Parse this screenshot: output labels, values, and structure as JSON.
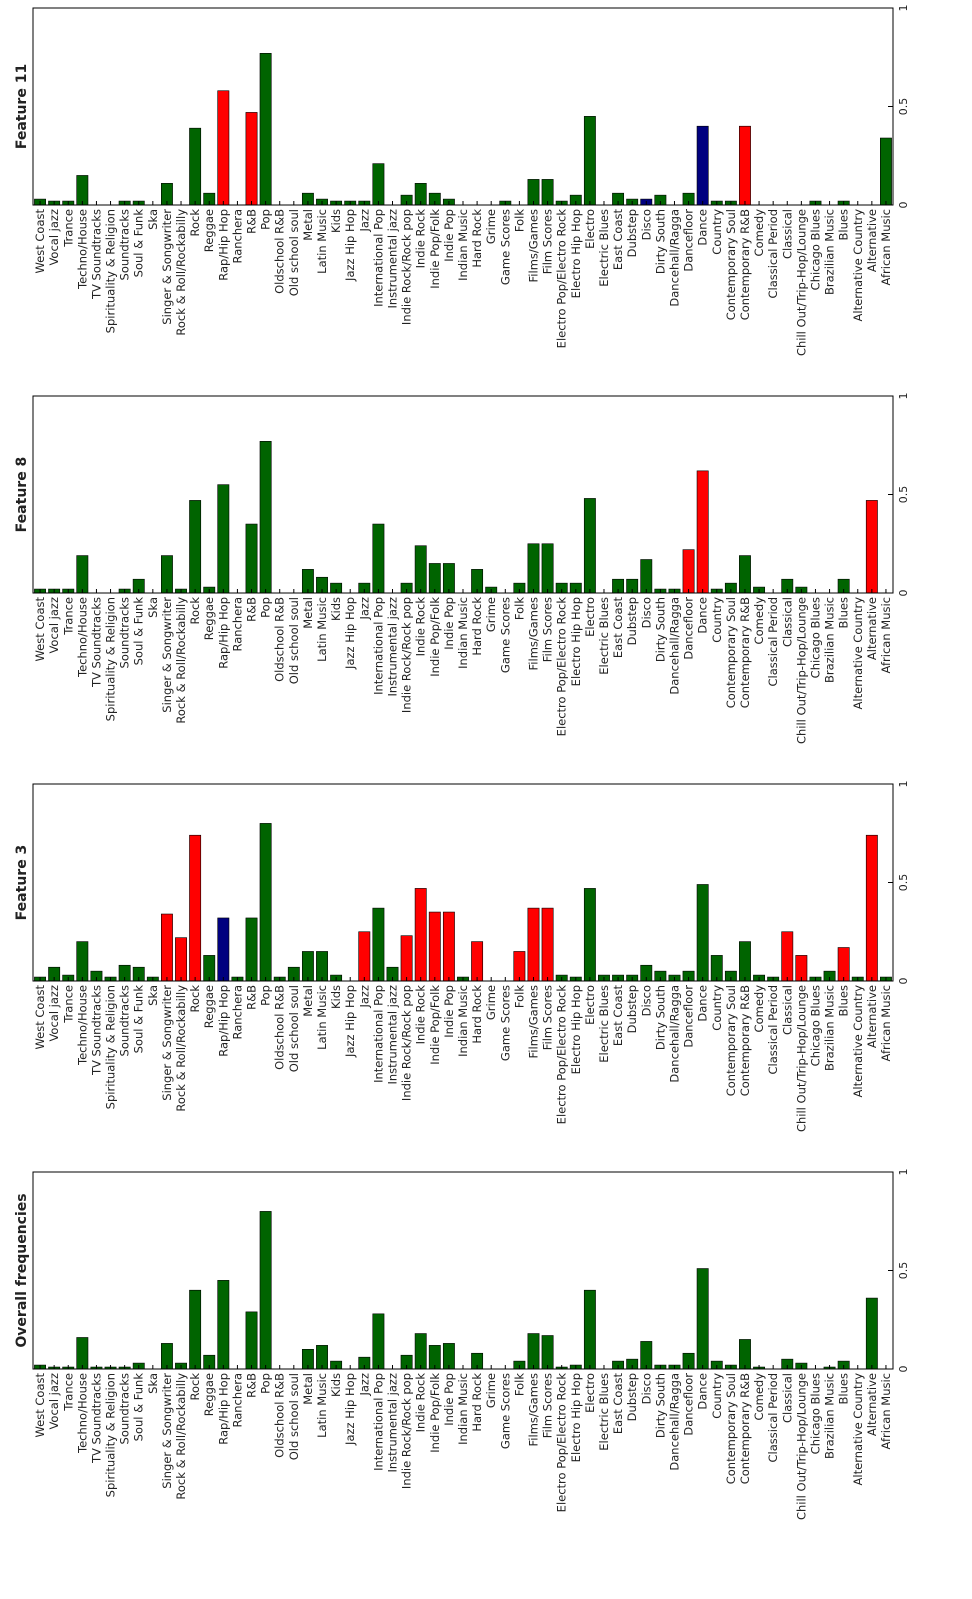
{
  "colors": {
    "green": "#006400",
    "red": "#ff0000",
    "blue": "#00007f"
  },
  "chart_data": [
    {
      "type": "bar",
      "title": "Feature 11",
      "ylim": [
        0,
        1
      ],
      "yticks": [
        0,
        0.5,
        1
      ],
      "ytick_labels": [
        "0",
        "0.5",
        "1"
      ],
      "categories": [
        "West Coast",
        "Vocal jazz",
        "Trance",
        "Techno/House",
        "TV Soundtracks",
        "Spirituality & Religion",
        "Soundtracks",
        "Soul & Funk",
        "Ska",
        "Singer & Songwriter",
        "Rock & Roll/Rockabilly",
        "Rock",
        "Reggae",
        "Rap/Hip Hop",
        "Ranchera",
        "R&B",
        "Pop",
        "Oldschool R&B",
        "Old school soul",
        "Metal",
        "Latin Music",
        "Kids",
        "Jazz Hip Hop",
        "Jazz",
        "International Pop",
        "Instrumental jazz",
        "Indie Rock/Rock pop",
        "Indie Rock",
        "Indie Pop/Folk",
        "Indie Pop",
        "Indian Music",
        "Hard Rock",
        "Grime",
        "Game Scores",
        "Folk",
        "Films/Games",
        "Film Scores",
        "Electro Pop/Electro Rock",
        "Electro Hip Hop",
        "Electro",
        "Electric Blues",
        "East Coast",
        "Dubstep",
        "Disco",
        "Dirty South",
        "Dancehall/Ragga",
        "Dancefloor",
        "Dance",
        "Country",
        "Contemporary Soul",
        "Contemporary R&B",
        "Comedy",
        "Classical Period",
        "Classical",
        "Chill Out/Trip-Hop/Lounge",
        "Chicago Blues",
        "Brazilian Music",
        "Blues",
        "Alternative Country",
        "Alternative",
        "African Music"
      ],
      "values": [
        0.03,
        0.02,
        0.02,
        0.15,
        0,
        0,
        0.02,
        0.02,
        0,
        0.11,
        0,
        0.39,
        0.06,
        0.58,
        0,
        0.47,
        0.77,
        0,
        0,
        0.06,
        0.03,
        0.02,
        0.02,
        0.02,
        0.21,
        0,
        0.05,
        0.11,
        0.06,
        0.03,
        0,
        0,
        0,
        0.02,
        0,
        0.13,
        0.13,
        0.02,
        0.05,
        0.45,
        0,
        0.06,
        0.03,
        0.03,
        0.05,
        0,
        0.06,
        0.4,
        0.02,
        0.02,
        0.4,
        0,
        0,
        0,
        0,
        0.02,
        0,
        0.02,
        0,
        0,
        0.34
      ],
      "bar_colors": [
        "green",
        "green",
        "green",
        "green",
        "green",
        "green",
        "green",
        "green",
        "green",
        "green",
        "green",
        "green",
        "green",
        "red",
        "green",
        "red",
        "green",
        "green",
        "green",
        "green",
        "green",
        "green",
        "green",
        "green",
        "green",
        "green",
        "green",
        "green",
        "green",
        "green",
        "green",
        "green",
        "green",
        "green",
        "green",
        "green",
        "green",
        "green",
        "green",
        "green",
        "green",
        "green",
        "green",
        "blue",
        "green",
        "green",
        "green",
        "blue",
        "green",
        "green",
        "red",
        "green",
        "green",
        "green",
        "green",
        "green",
        "green",
        "green",
        "green",
        "green",
        "green"
      ]
    },
    {
      "type": "bar",
      "title": "Feature 8",
      "ylim": [
        0,
        1
      ],
      "yticks": [
        0,
        0.5,
        1
      ],
      "ytick_labels": [
        "0",
        "0.5",
        "1"
      ],
      "categories": [
        "West Coast",
        "Vocal jazz",
        "Trance",
        "Techno/House",
        "TV Soundtracks",
        "Spirituality & Religion",
        "Soundtracks",
        "Soul & Funk",
        "Ska",
        "Singer & Songwriter",
        "Rock & Roll/Rockabilly",
        "Rock",
        "Reggae",
        "Rap/Hip Hop",
        "Ranchera",
        "R&B",
        "Pop",
        "Oldschool R&B",
        "Old school soul",
        "Metal",
        "Latin Music",
        "Kids",
        "Jazz Hip Hop",
        "Jazz",
        "International Pop",
        "Instrumental jazz",
        "Indie Rock/Rock pop",
        "Indie Rock",
        "Indie Pop/Folk",
        "Indie Pop",
        "Indian Music",
        "Hard Rock",
        "Grime",
        "Game Scores",
        "Folk",
        "Films/Games",
        "Film Scores",
        "Electro Pop/Electro Rock",
        "Electro Hip Hop",
        "Electro",
        "Electric Blues",
        "East Coast",
        "Dubstep",
        "Disco",
        "Dirty South",
        "Dancehall/Ragga",
        "Dancefloor",
        "Dance",
        "Country",
        "Contemporary Soul",
        "Contemporary R&B",
        "Comedy",
        "Classical Period",
        "Classical",
        "Chill Out/Trip-Hop/Lounge",
        "Chicago Blues",
        "Brazilian Music",
        "Blues",
        "Alternative Country",
        "Alternative",
        "African Music"
      ],
      "values": [
        0.02,
        0.02,
        0.02,
        0.19,
        0,
        0,
        0.02,
        0.07,
        0,
        0.19,
        0.02,
        0.47,
        0.03,
        0.55,
        0,
        0.35,
        0.77,
        0,
        0,
        0.12,
        0.08,
        0.05,
        0,
        0.05,
        0.35,
        0,
        0.05,
        0.24,
        0.15,
        0.15,
        0,
        0.12,
        0.03,
        0,
        0.05,
        0.25,
        0.25,
        0.05,
        0.05,
        0.48,
        0,
        0.07,
        0.07,
        0.17,
        0.02,
        0.02,
        0.22,
        0.62,
        0.02,
        0.05,
        0.19,
        0.03,
        0,
        0.07,
        0.03,
        0,
        0,
        0.07,
        0,
        0.47,
        0
      ],
      "bar_colors": [
        "green",
        "green",
        "green",
        "green",
        "green",
        "green",
        "green",
        "green",
        "green",
        "green",
        "green",
        "green",
        "green",
        "green",
        "green",
        "green",
        "green",
        "green",
        "green",
        "green",
        "green",
        "green",
        "green",
        "green",
        "green",
        "green",
        "green",
        "green",
        "green",
        "green",
        "green",
        "green",
        "green",
        "green",
        "green",
        "green",
        "green",
        "green",
        "green",
        "green",
        "green",
        "green",
        "green",
        "green",
        "green",
        "green",
        "red",
        "red",
        "green",
        "green",
        "green",
        "green",
        "green",
        "green",
        "green",
        "green",
        "green",
        "green",
        "green",
        "red",
        "green"
      ]
    },
    {
      "type": "bar",
      "title": "Feature 3",
      "ylim": [
        0,
        1
      ],
      "yticks": [
        0,
        0.5,
        1
      ],
      "ytick_labels": [
        "0",
        "0.5",
        "1"
      ],
      "categories": [
        "West Coast",
        "Vocal jazz",
        "Trance",
        "Techno/House",
        "TV Soundtracks",
        "Spirituality & Religion",
        "Soundtracks",
        "Soul & Funk",
        "Ska",
        "Singer & Songwriter",
        "Rock & Roll/Rockabilly",
        "Rock",
        "Reggae",
        "Rap/Hip Hop",
        "Ranchera",
        "R&B",
        "Pop",
        "Oldschool R&B",
        "Old school soul",
        "Metal",
        "Latin Music",
        "Kids",
        "Jazz Hip Hop",
        "Jazz",
        "International Pop",
        "Instrumental jazz",
        "Indie Rock/Rock pop",
        "Indie Rock",
        "Indie Pop/Folk",
        "Indie Pop",
        "Indian Music",
        "Hard Rock",
        "Grime",
        "Game Scores",
        "Folk",
        "Films/Games",
        "Film Scores",
        "Electro Pop/Electro Rock",
        "Electro Hip Hop",
        "Electro",
        "Electric Blues",
        "East Coast",
        "Dubstep",
        "Disco",
        "Dirty South",
        "Dancehall/Ragga",
        "Dancefloor",
        "Dance",
        "Country",
        "Contemporary Soul",
        "Contemporary R&B",
        "Comedy",
        "Classical Period",
        "Classical",
        "Chill Out/Trip-Hop/Lounge",
        "Chicago Blues",
        "Brazilian Music",
        "Blues",
        "Alternative Country",
        "Alternative",
        "African Music"
      ],
      "values": [
        0.02,
        0.07,
        0.03,
        0.2,
        0.05,
        0.02,
        0.08,
        0.07,
        0.02,
        0.34,
        0.22,
        0.74,
        0.13,
        0.32,
        0.02,
        0.32,
        0.8,
        0.02,
        0.07,
        0.15,
        0.15,
        0.03,
        0,
        0.25,
        0.37,
        0.07,
        0.23,
        0.47,
        0.35,
        0.35,
        0.02,
        0.2,
        0,
        0,
        0.15,
        0.37,
        0.37,
        0.03,
        0.02,
        0.47,
        0.03,
        0.03,
        0.03,
        0.08,
        0.05,
        0.03,
        0.05,
        0.49,
        0.13,
        0.05,
        0.2,
        0.03,
        0.02,
        0.25,
        0.13,
        0.02,
        0.05,
        0.17,
        0.02,
        0.74,
        0.02
      ],
      "bar_colors": [
        "green",
        "green",
        "green",
        "green",
        "green",
        "green",
        "green",
        "green",
        "green",
        "red",
        "red",
        "red",
        "green",
        "blue",
        "green",
        "green",
        "green",
        "green",
        "green",
        "green",
        "green",
        "green",
        "green",
        "red",
        "green",
        "green",
        "red",
        "red",
        "red",
        "red",
        "green",
        "red",
        "green",
        "green",
        "red",
        "red",
        "red",
        "green",
        "green",
        "green",
        "green",
        "green",
        "green",
        "green",
        "green",
        "green",
        "green",
        "green",
        "green",
        "green",
        "green",
        "green",
        "green",
        "red",
        "red",
        "green",
        "green",
        "red",
        "green",
        "red",
        "green"
      ]
    },
    {
      "type": "bar",
      "title": "Overall frequencies",
      "ylim": [
        0,
        1
      ],
      "yticks": [
        0,
        0.5,
        1
      ],
      "ytick_labels": [
        "0",
        "0.5",
        "1"
      ],
      "categories": [
        "West Coast",
        "Vocal jazz",
        "Trance",
        "Techno/House",
        "TV Soundtracks",
        "Spirituality & Religion",
        "Soundtracks",
        "Soul & Funk",
        "Ska",
        "Singer & Songwriter",
        "Rock & Roll/Rockabilly",
        "Rock",
        "Reggae",
        "Rap/Hip Hop",
        "Ranchera",
        "R&B",
        "Pop",
        "Oldschool R&B",
        "Old school soul",
        "Metal",
        "Latin Music",
        "Kids",
        "Jazz Hip Hop",
        "Jazz",
        "International Pop",
        "Instrumental jazz",
        "Indie Rock/Rock pop",
        "Indie Rock",
        "Indie Pop/Folk",
        "Indie Pop",
        "Indian Music",
        "Hard Rock",
        "Grime",
        "Game Scores",
        "Folk",
        "Films/Games",
        "Film Scores",
        "Electro Pop/Electro Rock",
        "Electro Hip Hop",
        "Electro",
        "Electric Blues",
        "East Coast",
        "Dubstep",
        "Disco",
        "Dirty South",
        "Dancehall/Ragga",
        "Dancefloor",
        "Dance",
        "Country",
        "Contemporary Soul",
        "Contemporary R&B",
        "Comedy",
        "Classical Period",
        "Classical",
        "Chill Out/Trip-Hop/Lounge",
        "Chicago Blues",
        "Brazilian Music",
        "Blues",
        "Alternative Country",
        "Alternative",
        "African Music"
      ],
      "values": [
        0.02,
        0.01,
        0.01,
        0.16,
        0.01,
        0.01,
        0.01,
        0.03,
        0,
        0.13,
        0.03,
        0.4,
        0.07,
        0.45,
        0,
        0.29,
        0.8,
        0,
        0,
        0.1,
        0.12,
        0.04,
        0,
        0.06,
        0.28,
        0,
        0.07,
        0.18,
        0.12,
        0.13,
        0,
        0.08,
        0,
        0,
        0.04,
        0.18,
        0.17,
        0.01,
        0.02,
        0.4,
        0,
        0.04,
        0.05,
        0.14,
        0.02,
        0.02,
        0.08,
        0.51,
        0.04,
        0.02,
        0.15,
        0.01,
        0,
        0.05,
        0.03,
        0,
        0.01,
        0.04,
        0,
        0.36,
        0
      ],
      "bar_colors": [
        "green",
        "green",
        "green",
        "green",
        "green",
        "green",
        "green",
        "green",
        "green",
        "green",
        "green",
        "green",
        "green",
        "green",
        "green",
        "green",
        "green",
        "green",
        "green",
        "green",
        "green",
        "green",
        "green",
        "green",
        "green",
        "green",
        "green",
        "green",
        "green",
        "green",
        "green",
        "green",
        "green",
        "green",
        "green",
        "green",
        "green",
        "green",
        "green",
        "green",
        "green",
        "green",
        "green",
        "green",
        "green",
        "green",
        "green",
        "green",
        "green",
        "green",
        "green",
        "green",
        "green",
        "green",
        "green",
        "green",
        "green",
        "green",
        "green",
        "green",
        "green"
      ]
    }
  ]
}
